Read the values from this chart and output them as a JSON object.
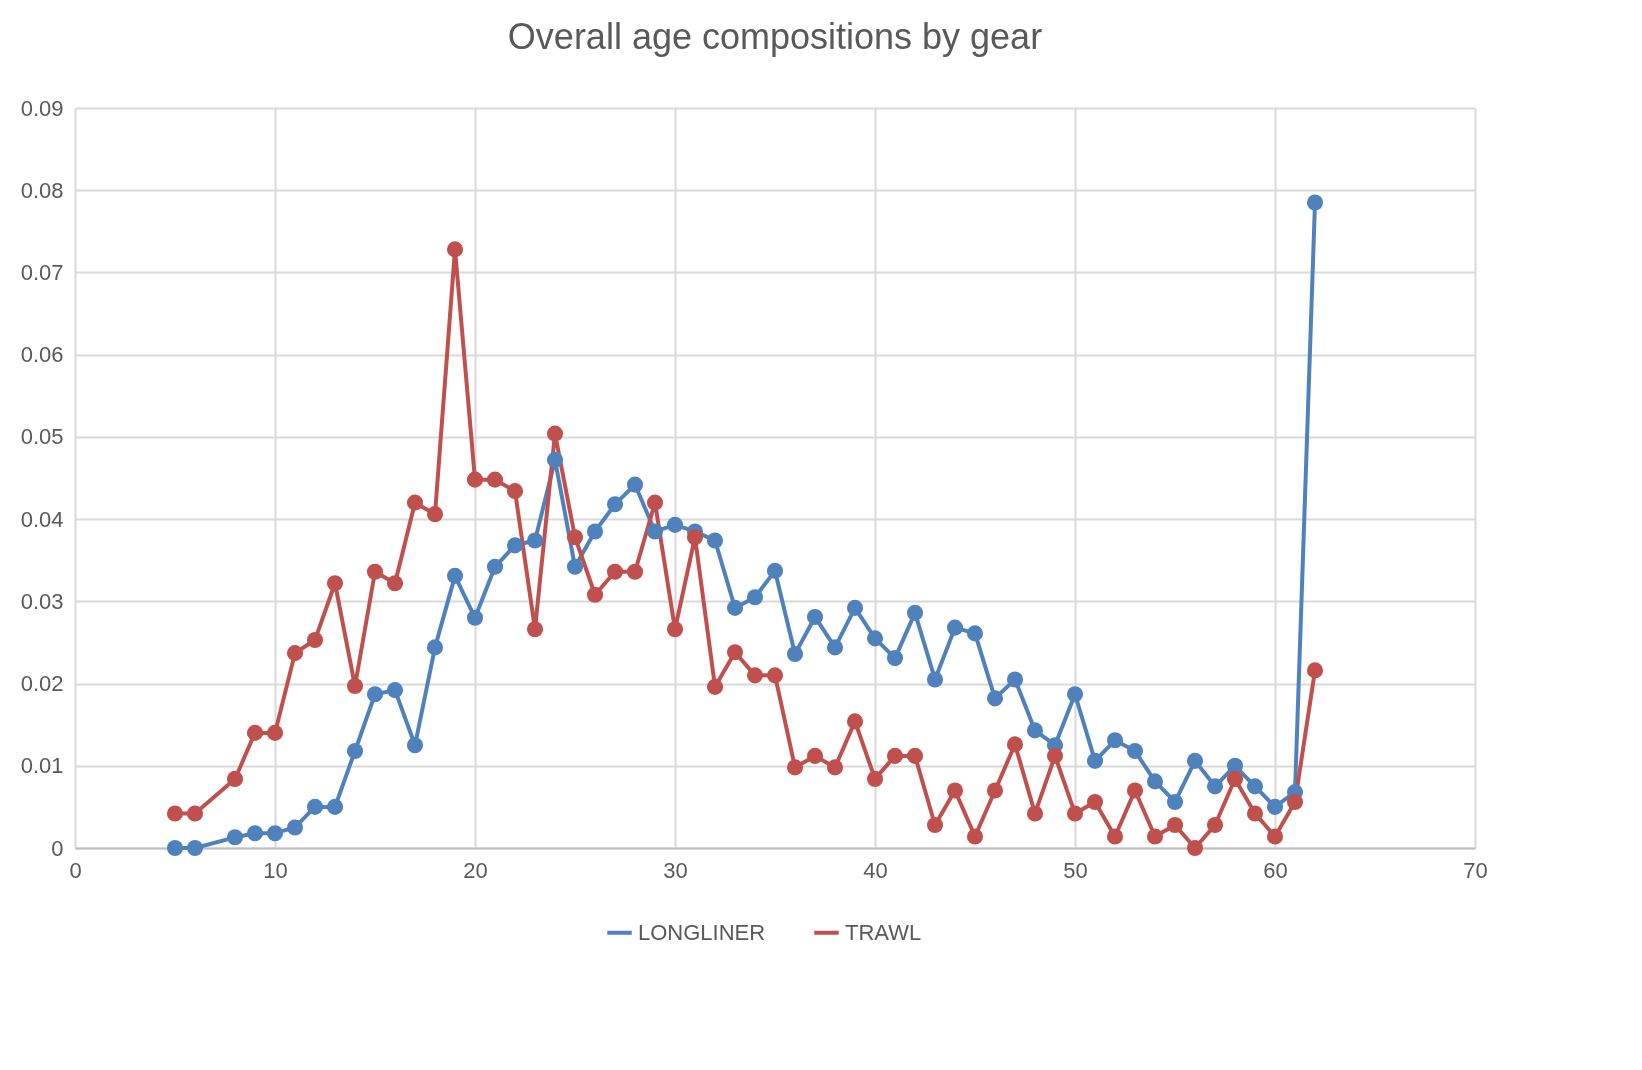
{
  "chart_data": {
    "type": "line",
    "title": "Overall age compositions by gear",
    "x": [
      5,
      6,
      8,
      9,
      10,
      11,
      12,
      13,
      14,
      15,
      16,
      17,
      18,
      19,
      20,
      21,
      22,
      23,
      24,
      25,
      26,
      27,
      28,
      29,
      30,
      31,
      32,
      33,
      34,
      35,
      36,
      37,
      38,
      39,
      40,
      41,
      42,
      43,
      44,
      45,
      46,
      47,
      48,
      49,
      50,
      51,
      52,
      53,
      54,
      55,
      56,
      57,
      58,
      59,
      60,
      61,
      62
    ],
    "series": [
      {
        "name": "LONGLINER",
        "color": "#4f81bd",
        "values": [
          0,
          0,
          0.0013,
          0.0018,
          0.0018,
          0.0025,
          0.005,
          0.005,
          0.0118,
          0.0187,
          0.0192,
          0.0125,
          0.0244,
          0.0331,
          0.028,
          0.0342,
          0.0368,
          0.0374,
          0.0472,
          0.0342,
          0.0385,
          0.0418,
          0.0442,
          0.0385,
          0.0393,
          0.0385,
          0.0374,
          0.0292,
          0.0305,
          0.0337,
          0.0236,
          0.0281,
          0.0244,
          0.0292,
          0.0255,
          0.0231,
          0.0286,
          0.0205,
          0.0268,
          0.0261,
          0.0182,
          0.0205,
          0.0143,
          0.0125,
          0.0187,
          0.0106,
          0.0131,
          0.0118,
          0.0081,
          0.0056,
          0.0106,
          0.0075,
          0.01,
          0.0075,
          0.005,
          0.0068,
          0.0785
        ]
      },
      {
        "name": "TRAWL",
        "color": "#c0504d",
        "values": [
          0.0042,
          0.0042,
          0.0084,
          0.014,
          0.014,
          0.0237,
          0.0253,
          0.0322,
          0.0197,
          0.0336,
          0.0322,
          0.042,
          0.0406,
          0.0728,
          0.0448,
          0.0448,
          0.0434,
          0.0266,
          0.0504,
          0.0378,
          0.0308,
          0.0336,
          0.0336,
          0.042,
          0.0266,
          0.0378,
          0.0196,
          0.0238,
          0.021,
          0.021,
          0.0098,
          0.0112,
          0.0098,
          0.0154,
          0.0084,
          0.0112,
          0.0112,
          0.0028,
          0.007,
          0.0014,
          0.007,
          0.0126,
          0.0042,
          0.0112,
          0.0042,
          0.0056,
          0.0014,
          0.007,
          0.0014,
          0.0028,
          0,
          0.0028,
          0.0084,
          0.0042,
          0.0014,
          0.0056,
          0.0216
        ]
      }
    ],
    "xlim": [
      0,
      70
    ],
    "xticks": [
      0,
      10,
      20,
      30,
      40,
      50,
      60,
      70
    ],
    "ylim": [
      0,
      0.09
    ],
    "yticks": [
      0,
      0.01,
      0.02,
      0.03,
      0.04,
      0.05,
      0.06,
      0.07,
      0.08,
      0.09
    ],
    "grid": true,
    "legend": "bottom",
    "marker": "circle",
    "line_style": "solid"
  }
}
